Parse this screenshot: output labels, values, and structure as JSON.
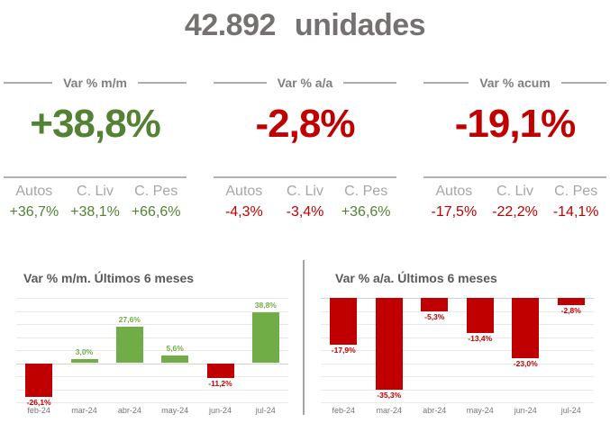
{
  "page": {
    "title": "42.892  unidades"
  },
  "colors": {
    "green": "#548235",
    "red": "#C00000",
    "title_gray": "#767171",
    "header_gray": "#7F7F7F",
    "label_gray": "#A6A6A6",
    "chart_title_gray": "#595959"
  },
  "kpis": [
    {
      "header": "Var % m/m",
      "value": "+38,8%",
      "value_color": "green",
      "breakdown": {
        "headers": [
          "Autos",
          "C. Liv",
          "C. Pes"
        ],
        "values": [
          {
            "text": "+36,7%",
            "color": "green"
          },
          {
            "text": "+38,1%",
            "color": "green"
          },
          {
            "text": "+66,6%",
            "color": "green"
          }
        ]
      }
    },
    {
      "header": "Var % a/a",
      "value": "-2,8%",
      "value_color": "red",
      "breakdown": {
        "headers": [
          "Autos",
          "C. Liv",
          "C. Pes"
        ],
        "values": [
          {
            "text": "-4,3%",
            "color": "red"
          },
          {
            "text": "-3,4%",
            "color": "red"
          },
          {
            "text": "+36,6%",
            "color": "green"
          }
        ]
      }
    },
    {
      "header": "Var % acum",
      "value": "-19,1%",
      "value_color": "red",
      "breakdown": {
        "headers": [
          "Autos",
          "C. Liv",
          "C. Pes"
        ],
        "values": [
          {
            "text": "-17,5%",
            "color": "red"
          },
          {
            "text": "-22,2%",
            "color": "red"
          },
          {
            "text": "-14,1%",
            "color": "red"
          }
        ]
      }
    }
  ],
  "chart_data": [
    {
      "type": "bar",
      "title": "Var % m/m. Últimos 6 meses",
      "categories": [
        "feb-24",
        "mar-24",
        "abr-24",
        "may-24",
        "jun-24",
        "jul-24"
      ],
      "values": [
        -26.1,
        3.0,
        27.6,
        5.6,
        -11.2,
        38.8
      ],
      "labels": [
        "-26,1%",
        "3,0%",
        "27,6%",
        "5,6%",
        "-11,2%",
        "38,8%"
      ],
      "ylim": [
        -30,
        50
      ],
      "grid_step": 10,
      "grid_on": true,
      "positive_color": "#70AD47",
      "negative_color": "#C00000",
      "xlabel": "",
      "ylabel": ""
    },
    {
      "type": "bar",
      "title": "Var % a/a. Últimos 6 meses",
      "categories": [
        "feb-24",
        "mar-24",
        "abr-24",
        "may-24",
        "jun-24",
        "jul-24"
      ],
      "values": [
        -17.9,
        -35.3,
        -5.3,
        -13.4,
        -23.0,
        -2.8
      ],
      "labels": [
        "-17,9%",
        "-35,3%",
        "-5,3%",
        "-13,4%",
        "-23,0%",
        "-2,8%"
      ],
      "ylim": [
        -40,
        0
      ],
      "grid_step": 5,
      "grid_on": true,
      "positive_color": "#70AD47",
      "negative_color": "#C00000",
      "xlabel": "",
      "ylabel": ""
    }
  ]
}
